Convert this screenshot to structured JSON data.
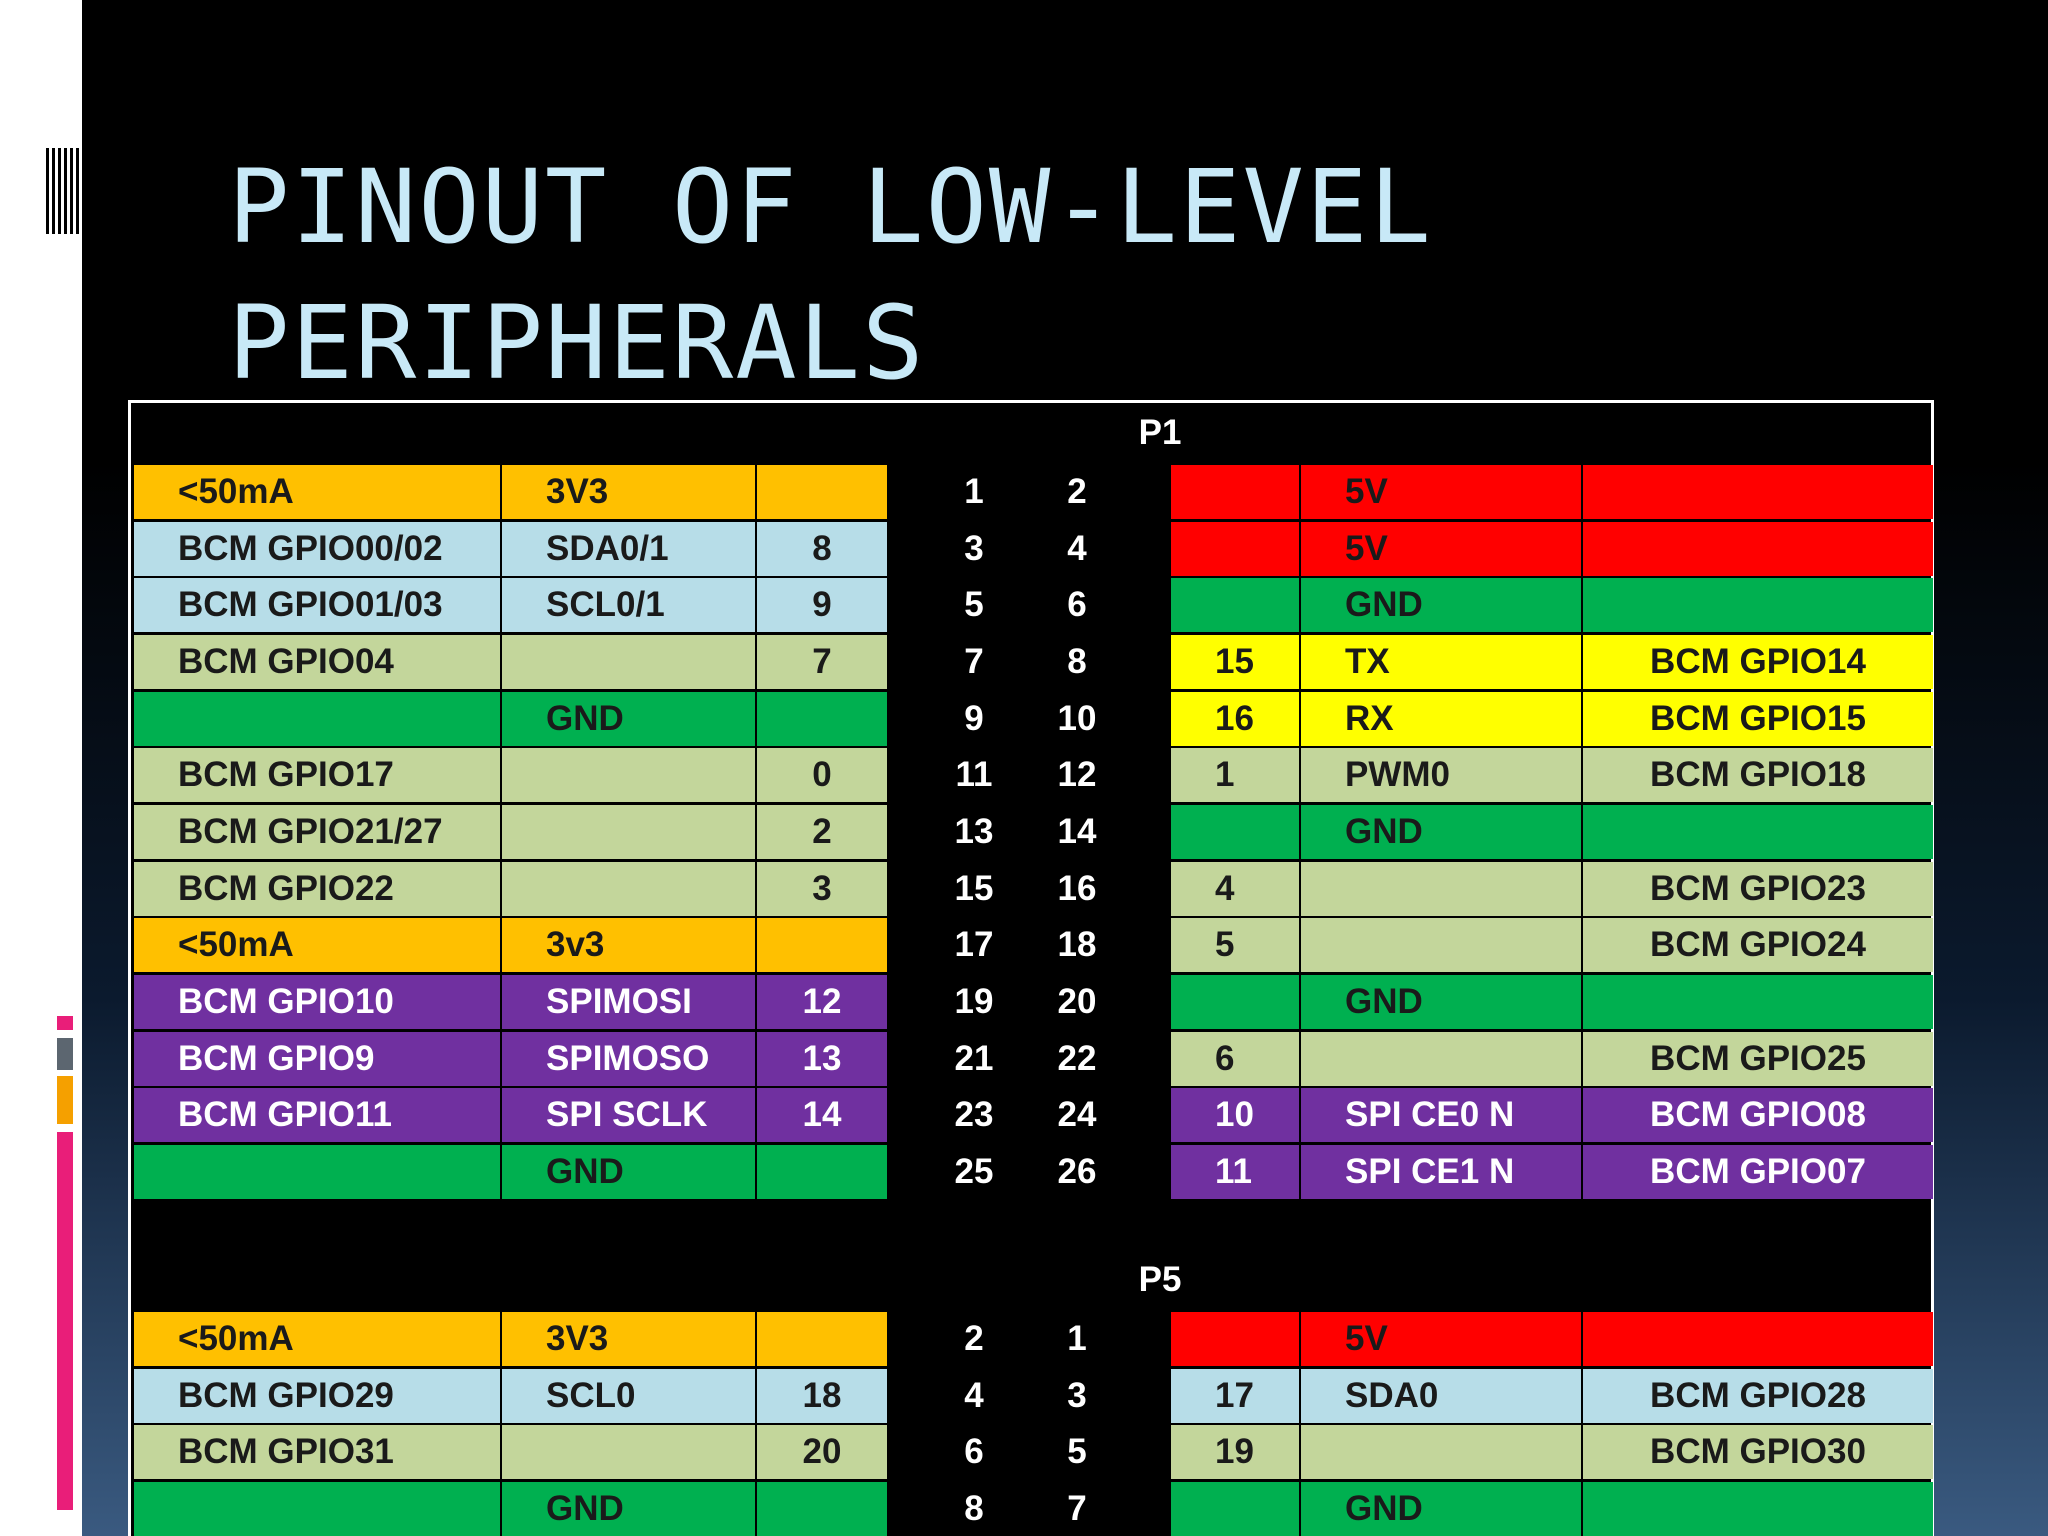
{
  "slide": {
    "title_line1": "PINOUT OF LOW-LEVEL",
    "title_line2": "PERIPHERALS"
  },
  "colors": {
    "orange": "#ffc000",
    "lightblue": "#b7dde8",
    "olive": "#c3d69b",
    "green": "#00b050",
    "purple": "#7030a0",
    "red": "#ff0000",
    "yellow": "#ffff00",
    "title": "#c8e9f7"
  },
  "p1": {
    "header": "P1",
    "rows": [
      {
        "left": [
          "<50mA",
          "3V3",
          ""
        ],
        "pins": [
          "1",
          "2"
        ],
        "right": [
          "",
          "5V",
          ""
        ],
        "lc": "orange",
        "rc": "red"
      },
      {
        "left": [
          "BCM GPIO00/02",
          "SDA0/1",
          "8"
        ],
        "pins": [
          "3",
          "4"
        ],
        "right": [
          "",
          "5V",
          ""
        ],
        "lc": "lightblue",
        "rc": "red"
      },
      {
        "left": [
          "BCM GPIO01/03",
          "SCL0/1",
          "9"
        ],
        "pins": [
          "5",
          "6"
        ],
        "right": [
          "",
          "GND",
          ""
        ],
        "lc": "lightblue",
        "rc": "green"
      },
      {
        "left": [
          "BCM GPIO04",
          "",
          "7"
        ],
        "pins": [
          "7",
          "8"
        ],
        "right": [
          "15",
          "TX",
          "BCM GPIO14"
        ],
        "lc": "olive",
        "rc": "yellow"
      },
      {
        "left": [
          "",
          "GND",
          ""
        ],
        "pins": [
          "9",
          "10"
        ],
        "right": [
          "16",
          "RX",
          "BCM GPIO15"
        ],
        "lc": "green",
        "rc": "yellow"
      },
      {
        "left": [
          "BCM GPIO17",
          "",
          "0"
        ],
        "pins": [
          "11",
          "12"
        ],
        "right": [
          "1",
          "PWM0",
          "BCM GPIO18"
        ],
        "lc": "olive",
        "rc": "olive"
      },
      {
        "left": [
          "BCM GPIO21/27",
          "",
          "2"
        ],
        "pins": [
          "13",
          "14"
        ],
        "right": [
          "",
          "GND",
          ""
        ],
        "lc": "olive",
        "rc": "green"
      },
      {
        "left": [
          "BCM GPIO22",
          "",
          "3"
        ],
        "pins": [
          "15",
          "16"
        ],
        "right": [
          "4",
          "",
          "BCM GPIO23"
        ],
        "lc": "olive",
        "rc": "olive"
      },
      {
        "left": [
          "<50mA",
          "3v3",
          ""
        ],
        "pins": [
          "17",
          "18"
        ],
        "right": [
          "5",
          "",
          "BCM GPIO24"
        ],
        "lc": "orange",
        "rc": "olive"
      },
      {
        "left": [
          "BCM GPIO10",
          "SPIMOSI",
          "12"
        ],
        "pins": [
          "19",
          "20"
        ],
        "right": [
          "",
          "GND",
          ""
        ],
        "lc": "purple",
        "rc": "green"
      },
      {
        "left": [
          "BCM GPIO9",
          "SPIMOSO",
          "13"
        ],
        "pins": [
          "21",
          "22"
        ],
        "right": [
          "6",
          "",
          "BCM GPIO25"
        ],
        "lc": "purple",
        "rc": "olive"
      },
      {
        "left": [
          "BCM GPIO11",
          "SPI SCLK",
          "14"
        ],
        "pins": [
          "23",
          "24"
        ],
        "right": [
          "10",
          "SPI CE0 N",
          "BCM GPIO08"
        ],
        "lc": "purple",
        "rc": "purple"
      },
      {
        "left": [
          "",
          "GND",
          ""
        ],
        "pins": [
          "25",
          "26"
        ],
        "right": [
          "11",
          "SPI CE1 N",
          "BCM GPIO07"
        ],
        "lc": "green",
        "rc": "purple"
      }
    ]
  },
  "p5": {
    "header": "P5",
    "rows": [
      {
        "left": [
          "<50mA",
          "3V3",
          ""
        ],
        "pins": [
          "2",
          "1"
        ],
        "right": [
          "",
          "5V",
          ""
        ],
        "lc": "orange",
        "rc": "red"
      },
      {
        "left": [
          "BCM GPIO29",
          "SCL0",
          "18"
        ],
        "pins": [
          "4",
          "3"
        ],
        "right": [
          "17",
          "SDA0",
          "BCM GPIO28"
        ],
        "lc": "lightblue",
        "rc": "lightblue"
      },
      {
        "left": [
          "BCM GPIO31",
          "",
          "20"
        ],
        "pins": [
          "6",
          "5"
        ],
        "right": [
          "19",
          "",
          "BCM GPIO30"
        ],
        "lc": "olive",
        "rc": "olive"
      },
      {
        "left": [
          "",
          "GND",
          ""
        ],
        "pins": [
          "8",
          "7"
        ],
        "right": [
          "",
          "GND",
          ""
        ],
        "lc": "green",
        "rc": "green"
      }
    ]
  }
}
